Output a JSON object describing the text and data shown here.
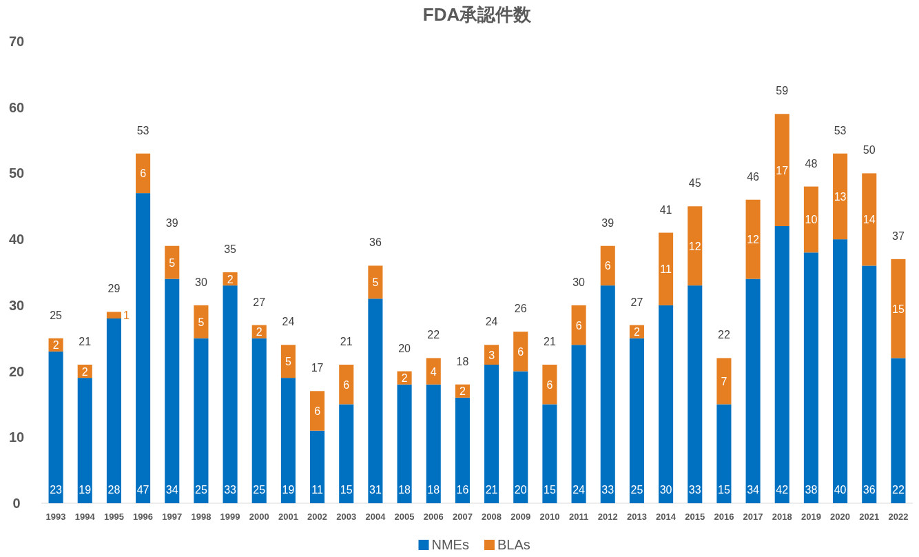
{
  "chart_data": {
    "type": "bar",
    "title": "FDA承認件数",
    "stacked": true,
    "data_labels": true,
    "legend": "bottom",
    "categories": [
      "1993",
      "1994",
      "1995",
      "1996",
      "1997",
      "1998",
      "1999",
      "2000",
      "2001",
      "2002",
      "2003",
      "2004",
      "2005",
      "2006",
      "2007",
      "2008",
      "2009",
      "2010",
      "2011",
      "2012",
      "2013",
      "2014",
      "2015",
      "2016",
      "2017",
      "2018",
      "2019",
      "2020",
      "2021",
      "2022"
    ],
    "series": [
      {
        "name": "NMEs",
        "color": "#0070c0",
        "values": [
          23,
          19,
          28,
          47,
          34,
          25,
          33,
          25,
          19,
          11,
          15,
          31,
          18,
          18,
          16,
          21,
          20,
          15,
          24,
          33,
          25,
          30,
          33,
          15,
          34,
          42,
          38,
          40,
          36,
          22
        ]
      },
      {
        "name": "BLAs",
        "color": "#e67f22",
        "values": [
          2,
          2,
          1,
          6,
          5,
          5,
          2,
          2,
          5,
          6,
          6,
          5,
          2,
          4,
          2,
          3,
          6,
          6,
          6,
          6,
          2,
          11,
          12,
          7,
          12,
          17,
          10,
          13,
          14,
          15
        ]
      }
    ],
    "totals": [
      "25",
      "21",
      "29",
      "53",
      "39",
      "30",
      "35",
      "27",
      "24",
      "17",
      "21",
      "36",
      "20",
      "22",
      "18",
      "24",
      "26",
      "21",
      "30",
      "39",
      "27",
      "41",
      "45",
      "22",
      "46",
      "59",
      "48",
      "53",
      "50",
      "37"
    ],
    "ylim": [
      0,
      70
    ],
    "yticks": [
      0,
      10,
      20,
      30,
      40,
      50,
      60,
      70
    ],
    "grid": false
  }
}
